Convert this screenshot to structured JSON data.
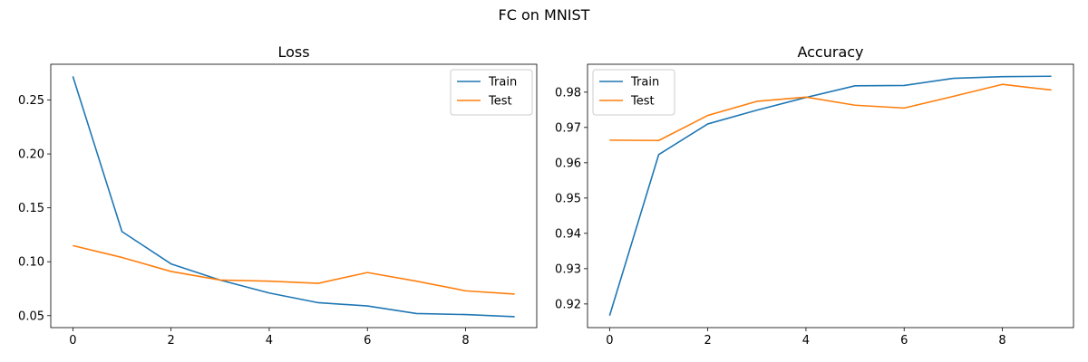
{
  "figure": {
    "suptitle": "FC on MNIST"
  },
  "chart_data": [
    {
      "type": "line",
      "title": "Loss",
      "xlabel": "",
      "ylabel": "",
      "x": [
        0,
        1,
        2,
        3,
        4,
        5,
        6,
        7,
        8,
        9
      ],
      "xlim": [
        -0.45,
        9.45
      ],
      "ylim": [
        0.0389,
        0.2832
      ],
      "xticks": [
        0,
        2,
        4,
        6,
        8
      ],
      "yticks": [
        0.05,
        0.1,
        0.15,
        0.2,
        0.25
      ],
      "xtick_labels": [
        "0",
        "2",
        "4",
        "6",
        "8"
      ],
      "ytick_labels": [
        "0.05",
        "0.10",
        "0.15",
        "0.20",
        "0.25"
      ],
      "grid": false,
      "legend_position": "upper right",
      "series": [
        {
          "name": "Train",
          "color": "#1f77b4",
          "values": [
            0.272,
            0.128,
            0.098,
            0.083,
            0.071,
            0.062,
            0.059,
            0.052,
            0.051,
            0.049
          ]
        },
        {
          "name": "Test",
          "color": "#ff7f0e",
          "values": [
            0.115,
            0.104,
            0.091,
            0.083,
            0.082,
            0.08,
            0.09,
            0.082,
            0.073,
            0.07
          ]
        }
      ]
    },
    {
      "type": "line",
      "title": "Accuracy",
      "xlabel": "",
      "ylabel": "",
      "x": [
        0,
        1,
        2,
        3,
        4,
        5,
        6,
        7,
        8,
        9
      ],
      "xlim": [
        -0.45,
        9.45
      ],
      "ylim": [
        0.9133,
        0.9879
      ],
      "xticks": [
        0,
        2,
        4,
        6,
        8
      ],
      "yticks": [
        0.92,
        0.93,
        0.94,
        0.95,
        0.96,
        0.97,
        0.98
      ],
      "xtick_labels": [
        "0",
        "2",
        "4",
        "6",
        "8"
      ],
      "ytick_labels": [
        "0.92",
        "0.93",
        "0.94",
        "0.95",
        "0.96",
        "0.97",
        "0.98"
      ],
      "grid": false,
      "legend_position": "upper left",
      "series": [
        {
          "name": "Train",
          "color": "#1f77b4",
          "values": [
            0.9167,
            0.9623,
            0.971,
            0.9749,
            0.9785,
            0.9818,
            0.9819,
            0.9839,
            0.9844,
            0.9845
          ]
        },
        {
          "name": "Test",
          "color": "#ff7f0e",
          "values": [
            0.9664,
            0.9663,
            0.9734,
            0.9774,
            0.9786,
            0.9763,
            0.9755,
            0.9788,
            0.9822,
            0.9806
          ]
        }
      ]
    }
  ]
}
